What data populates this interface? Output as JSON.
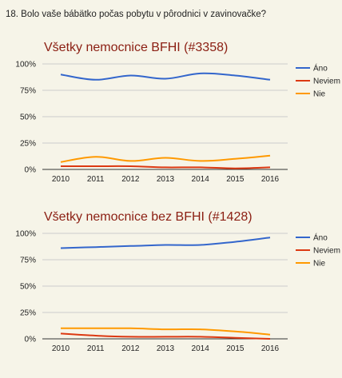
{
  "question": "18. Bolo vaše bábätko počas pobytu v pôrodnici v zavinovačke?",
  "colors": {
    "Áno": "#3366cc",
    "Neviem": "#dc3912",
    "Nie": "#ff9900"
  },
  "chart_data": [
    {
      "type": "line",
      "title": "Všetky nemocnice BFHI (#3358)",
      "x": [
        "2010",
        "2011",
        "2012",
        "2013",
        "2014",
        "2015",
        "2016"
      ],
      "ylim": [
        0,
        100
      ],
      "yticks": [
        "0%",
        "25%",
        "50%",
        "75%",
        "100%"
      ],
      "grid": true,
      "legend": "right",
      "series": [
        {
          "name": "Áno",
          "values": [
            90,
            85,
            89,
            86,
            91,
            89,
            85
          ]
        },
        {
          "name": "Neviem",
          "values": [
            3,
            3,
            3,
            2,
            2,
            1,
            2
          ]
        },
        {
          "name": "Nie",
          "values": [
            7,
            12,
            8,
            11,
            8,
            10,
            13
          ]
        }
      ]
    },
    {
      "type": "line",
      "title": "Všetky nemocnice bez BFHI (#1428)",
      "x": [
        "2010",
        "2011",
        "2012",
        "2013",
        "2014",
        "2015",
        "2016"
      ],
      "ylim": [
        0,
        100
      ],
      "yticks": [
        "0%",
        "25%",
        "50%",
        "75%",
        "100%"
      ],
      "grid": true,
      "legend": "right",
      "series": [
        {
          "name": "Áno",
          "values": [
            86,
            87,
            88,
            89,
            89,
            92,
            96
          ]
        },
        {
          "name": "Neviem",
          "values": [
            5,
            3,
            2,
            2,
            2,
            1,
            0
          ]
        },
        {
          "name": "Nie",
          "values": [
            10,
            10,
            10,
            9,
            9,
            7,
            4
          ]
        }
      ]
    }
  ]
}
